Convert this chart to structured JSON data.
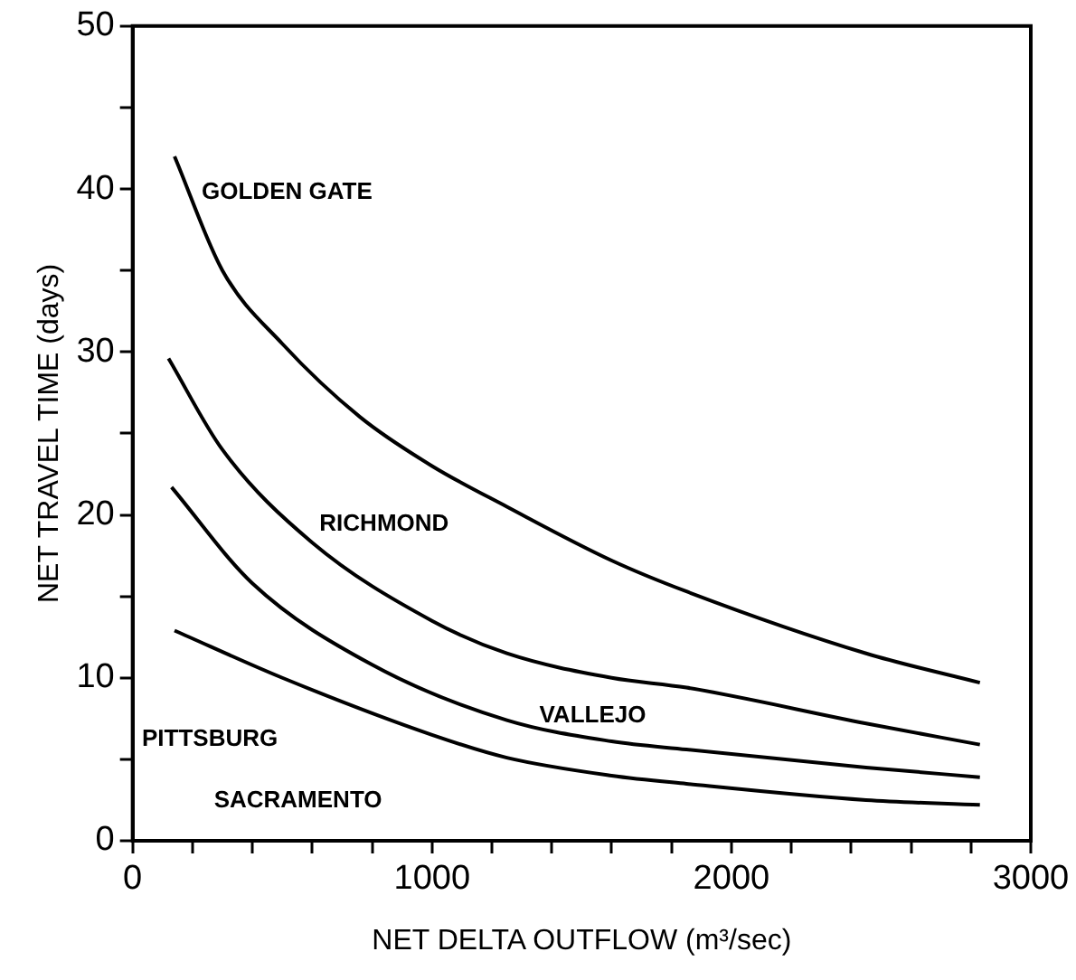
{
  "chart_data": {
    "type": "line",
    "xlabel": "NET DELTA OUTFLOW (m³/sec)",
    "ylabel": "NET TRAVEL TIME (days)",
    "xlim": [
      0,
      3000
    ],
    "ylim": [
      0,
      50
    ],
    "xticks": [
      0,
      {
        "value": 200,
        "label": null
      },
      {
        "value": 400,
        "label": null
      },
      {
        "value": 600,
        "label": null
      },
      {
        "value": 800,
        "label": null
      },
      1000,
      {
        "value": 1200,
        "label": null
      },
      {
        "value": 1400,
        "label": null
      },
      {
        "value": 1600,
        "label": null
      },
      {
        "value": 1800,
        "label": null
      },
      2000,
      {
        "value": 2200,
        "label": null
      },
      {
        "value": 2400,
        "label": null
      },
      {
        "value": 2600,
        "label": null
      },
      {
        "value": 2800,
        "label": null
      },
      3000
    ],
    "yticks": [
      0,
      {
        "value": 5,
        "label": null
      },
      10,
      {
        "value": 15,
        "label": null
      },
      20,
      {
        "value": 25,
        "label": null
      },
      30,
      {
        "value": 35,
        "label": null
      },
      40,
      {
        "value": 45,
        "label": null
      },
      50
    ],
    "marker": "none",
    "line_style": "solid",
    "grid": false,
    "legend": false,
    "series": [
      {
        "name": "GOLDEN GATE",
        "color": "#000000",
        "x": [
          140,
          300,
          500,
          760,
          1000,
          1250,
          1600,
          1850,
          2450,
          2830
        ],
        "values": [
          42,
          35,
          30.5,
          26,
          23,
          20.5,
          17.2,
          15.3,
          11.5,
          9.7
        ]
      },
      {
        "name": "RICHMOND",
        "color": "#000000",
        "x": [
          120,
          300,
          600,
          1000,
          1250,
          1600,
          1850,
          2450,
          2830
        ],
        "values": [
          29.6,
          24,
          18.3,
          13.5,
          11.5,
          10,
          9.4,
          7.2,
          5.9
        ]
      },
      {
        "name": "VALLEJO",
        "color": "#000000",
        "x": [
          130,
          400,
          800,
          1250,
          1600,
          1850,
          2450,
          2830
        ],
        "values": [
          21.7,
          15.8,
          10.8,
          7.4,
          6.1,
          5.6,
          4.5,
          3.9
        ]
      },
      {
        "name": "PITTSBURG",
        "color": "#000000",
        "x": [
          140,
          500,
          1000,
          1250,
          1600,
          1850,
          2450,
          2830
        ],
        "values": [
          12.9,
          10,
          6.5,
          5.1,
          4,
          3.5,
          2.5,
          2.2
        ]
      }
    ],
    "annotations": [
      "SACRAMENTO"
    ]
  }
}
